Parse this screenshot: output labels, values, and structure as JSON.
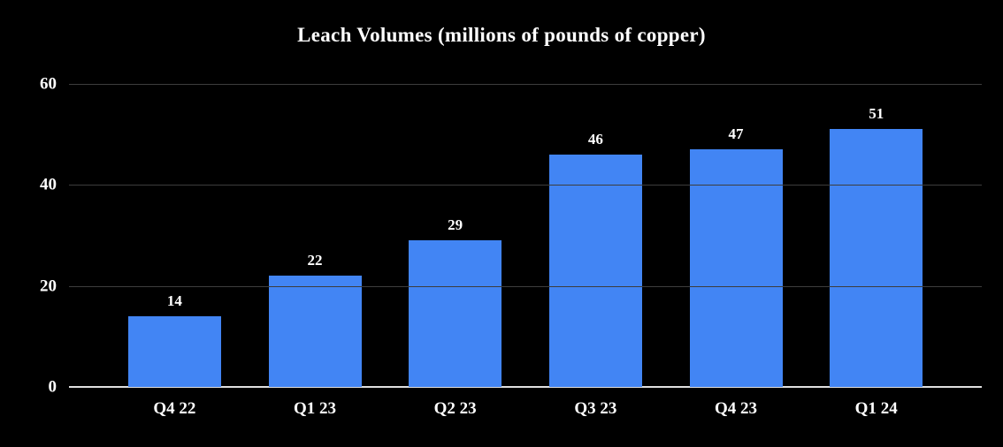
{
  "chart_data": {
    "type": "bar",
    "title": "Leach Volumes (millions of pounds of copper)",
    "categories": [
      "Q4 22",
      "Q1 23",
      "Q2 23",
      "Q3 23",
      "Q4 23",
      "Q1 24"
    ],
    "values": [
      14,
      22,
      29,
      46,
      47,
      51
    ],
    "xlabel": "",
    "ylabel": "",
    "ylim": [
      0,
      60
    ],
    "yticks": [
      0,
      20,
      40,
      60
    ],
    "grid": true,
    "legend": "none",
    "colors": {
      "background": "#000000",
      "bar": "#4285f4",
      "text": "#ffffff",
      "gridline": "#3d3d3d",
      "axis": "#e0e0e0"
    }
  }
}
